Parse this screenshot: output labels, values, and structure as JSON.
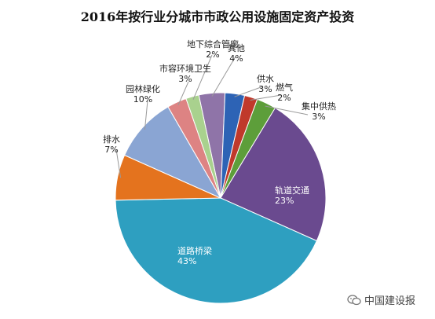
{
  "chart_data": {
    "type": "pie",
    "title": "2016年按行业分城市市政公用设施固定资产投资",
    "slices": [
      {
        "name": "其他",
        "pct_label": "4%",
        "value": 4,
        "color": "#8f74a8"
      },
      {
        "name": "供水",
        "pct_label": "3%",
        "value": 3,
        "color": "#2d63b5"
      },
      {
        "name": "燃气",
        "pct_label": "2%",
        "value": 2,
        "color": "#c0392b"
      },
      {
        "name": "集中供热",
        "pct_label": "3%",
        "value": 3,
        "color": "#5d9e3a"
      },
      {
        "name": "轨道交通",
        "pct_label": "23%",
        "value": 23,
        "color": "#6a4a8f"
      },
      {
        "name": "道路桥梁",
        "pct_label": "43%",
        "value": 43,
        "color": "#2e9fc0"
      },
      {
        "name": "排水",
        "pct_label": "7%",
        "value": 7,
        "color": "#e4731e"
      },
      {
        "name": "园林绿化",
        "pct_label": "10%",
        "value": 10,
        "color": "#8aa5d3"
      },
      {
        "name": "市容环境卫生",
        "pct_label": "3%",
        "value": 3,
        "color": "#dd8383"
      },
      {
        "name": "地下综合管廊",
        "pct_label": "2%",
        "value": 2,
        "color": "#a9d18e"
      }
    ]
  },
  "watermark": {
    "icon": "wechat-icon",
    "text": "中国建设报"
  }
}
